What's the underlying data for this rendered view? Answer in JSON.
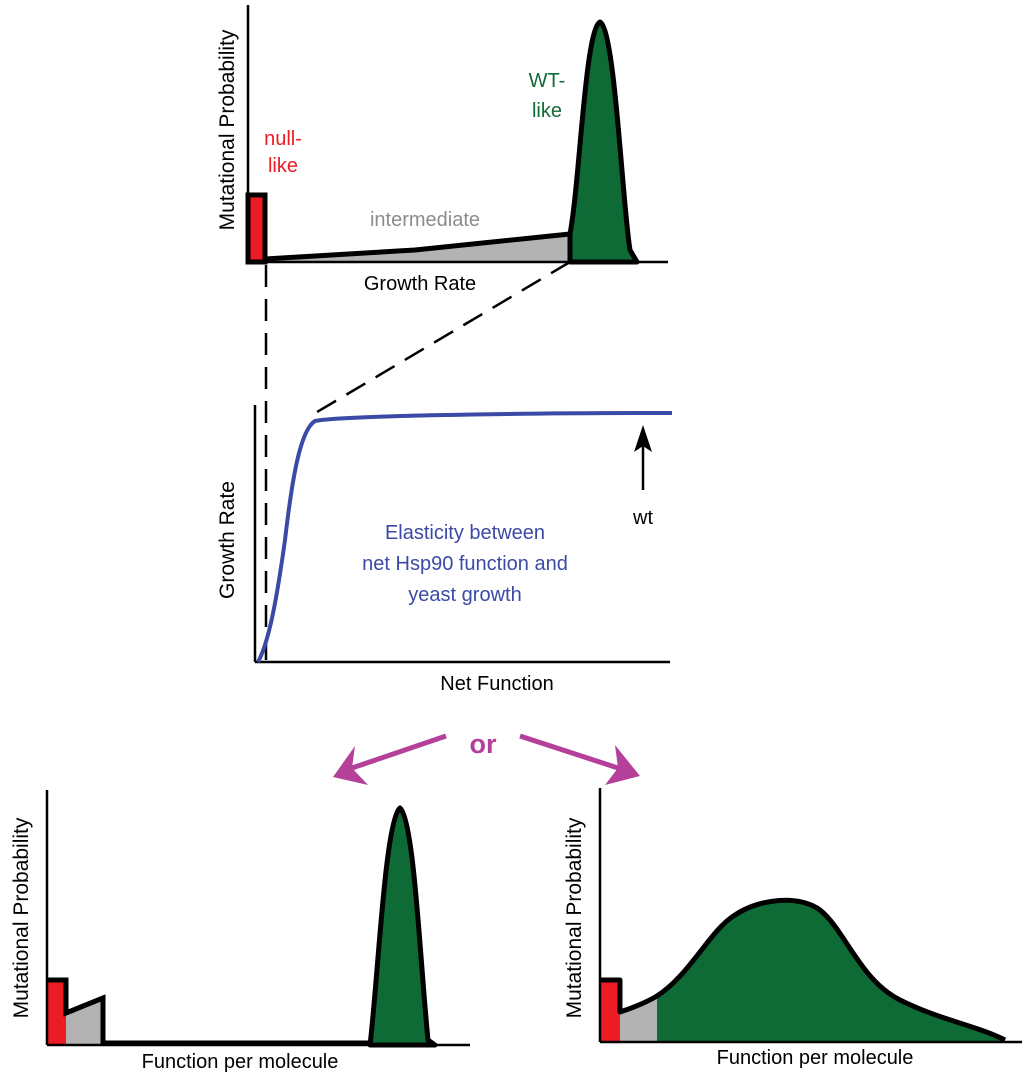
{
  "colors": {
    "red": "#ed1c24",
    "gray": "#b3b3b3",
    "green": "#0f6b35",
    "blue": "#3b4aa6",
    "magenta": "#b5409a",
    "black": "#000000"
  },
  "top_panel": {
    "y_label": "Mutational Probability",
    "x_label": "Growth Rate",
    "null_label_1": "null-",
    "null_label_2": "like",
    "wt_label_1": "WT-",
    "wt_label_2": "like",
    "intermediate_label": "intermediate"
  },
  "middle_panel": {
    "y_label": "Growth Rate",
    "x_label": "Net Function",
    "arrow_label": "wt",
    "caption_lines": [
      "Elasticity between",
      "net Hsp90 function and",
      "yeast growth"
    ]
  },
  "or_label": "or",
  "bottom_left": {
    "y_label": "Mutational Probability",
    "x_label": "Function per molecule"
  },
  "bottom_right": {
    "y_label": "Mutational Probability",
    "x_label": "Function per molecule"
  }
}
